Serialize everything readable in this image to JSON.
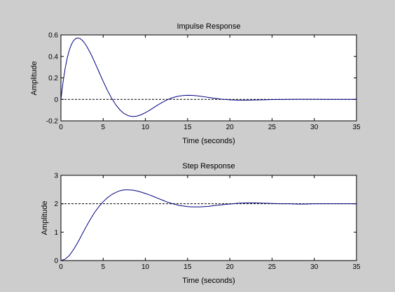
{
  "colors": {
    "figure_background": "#cdcdcd",
    "axes_background": "#ffffff",
    "response_line": "#00007f",
    "reference_line": "#000000"
  },
  "chart_data": [
    {
      "type": "line",
      "title": "Impulse Response",
      "xlabel": "Time (seconds)",
      "ylabel": "Amplitude",
      "xlim": [
        0,
        35
      ],
      "ylim": [
        -0.2,
        0.6
      ],
      "xticks": [
        0,
        5,
        10,
        15,
        20,
        25,
        30,
        35
      ],
      "xtick_labels": [
        "0",
        "5",
        "10",
        "15",
        "20",
        "25",
        "30",
        "35"
      ],
      "yticks": [
        -0.2,
        0,
        0.2,
        0.4,
        0.6
      ],
      "ytick_labels": [
        "-0.2",
        "0",
        "0.2",
        "0.4",
        "0.6"
      ],
      "grid": false,
      "reference_line": {
        "y": 0,
        "style": "dashed"
      },
      "series": [
        {
          "x": [
            0,
            0.25,
            0.5,
            0.75,
            1,
            1.25,
            1.5,
            1.75,
            2,
            2.25,
            2.5,
            2.75,
            3,
            3.25,
            3.5,
            3.75,
            4,
            4.5,
            5,
            5.5,
            6,
            6.5,
            7,
            7.5,
            8,
            8.5,
            9,
            9.5,
            10,
            10.5,
            11,
            11.5,
            12,
            12.5,
            13,
            13.5,
            14,
            14.5,
            15,
            15.5,
            16,
            16.5,
            17,
            17.5,
            18,
            18.5,
            19,
            19.5,
            20,
            21,
            22,
            23,
            24,
            25,
            26,
            27,
            28,
            29,
            30,
            31,
            32,
            33,
            34,
            35
          ],
          "y": [
            0,
            0.161,
            0.289,
            0.387,
            0.461,
            0.513,
            0.547,
            0.566,
            0.572,
            0.567,
            0.552,
            0.53,
            0.501,
            0.467,
            0.429,
            0.389,
            0.346,
            0.257,
            0.168,
            0.085,
            0.011,
            -0.051,
            -0.099,
            -0.133,
            -0.153,
            -0.16,
            -0.156,
            -0.143,
            -0.124,
            -0.101,
            -0.076,
            -0.051,
            -0.028,
            -0.007,
            0.01,
            0.022,
            0.031,
            0.036,
            0.038,
            0.037,
            0.034,
            0.029,
            0.024,
            0.018,
            0.012,
            0.007,
            0.002,
            -0.001,
            -0.004,
            -0.007,
            -0.007,
            -0.006,
            -0.004,
            -0.002,
            -0.001,
            0.0,
            0.001,
            0.001,
            0.001,
            0.0,
            0.0,
            0.0,
            0.0,
            0.0
          ]
        }
      ]
    },
    {
      "type": "line",
      "title": "Step Response",
      "xlabel": "Time (seconds)",
      "ylabel": "Amplitude",
      "xlim": [
        0,
        35
      ],
      "ylim": [
        0,
        3
      ],
      "xticks": [
        0,
        5,
        10,
        15,
        20,
        25,
        30,
        35
      ],
      "xtick_labels": [
        "0",
        "5",
        "10",
        "15",
        "20",
        "25",
        "30",
        "35"
      ],
      "yticks": [
        0,
        1,
        2,
        3
      ],
      "ytick_labels": [
        "0",
        "1",
        "2",
        "3"
      ],
      "grid": false,
      "reference_line": {
        "y": 2,
        "style": "dashed"
      },
      "series": [
        {
          "x": [
            0,
            0.5,
            1,
            1.5,
            2,
            2.5,
            3,
            3.5,
            4,
            4.5,
            5,
            5.5,
            6,
            6.5,
            7,
            7.5,
            8,
            8.5,
            9,
            9.5,
            10,
            10.5,
            11,
            11.5,
            12,
            12.5,
            13,
            13.5,
            14,
            14.5,
            15,
            15.5,
            16,
            16.5,
            17,
            17.5,
            18,
            18.5,
            19,
            19.5,
            20,
            21,
            22,
            23,
            24,
            25,
            26,
            27,
            28,
            29,
            30,
            31,
            32,
            33,
            34,
            35
          ],
          "y": [
            0,
            0.05,
            0.18,
            0.39,
            0.64,
            0.92,
            1.2,
            1.46,
            1.7,
            1.9,
            2.07,
            2.21,
            2.32,
            2.4,
            2.46,
            2.49,
            2.49,
            2.48,
            2.45,
            2.41,
            2.36,
            2.31,
            2.25,
            2.19,
            2.13,
            2.07,
            2.02,
            1.98,
            1.94,
            1.92,
            1.9,
            1.89,
            1.89,
            1.89,
            1.9,
            1.91,
            1.93,
            1.95,
            1.96,
            1.98,
            1.99,
            2.02,
            2.03,
            2.03,
            2.02,
            2.01,
            2.0,
            2.0,
            1.99,
            1.99,
            2.0,
            2.0,
            2.0,
            2.0,
            2.0,
            2.0
          ]
        }
      ]
    }
  ]
}
